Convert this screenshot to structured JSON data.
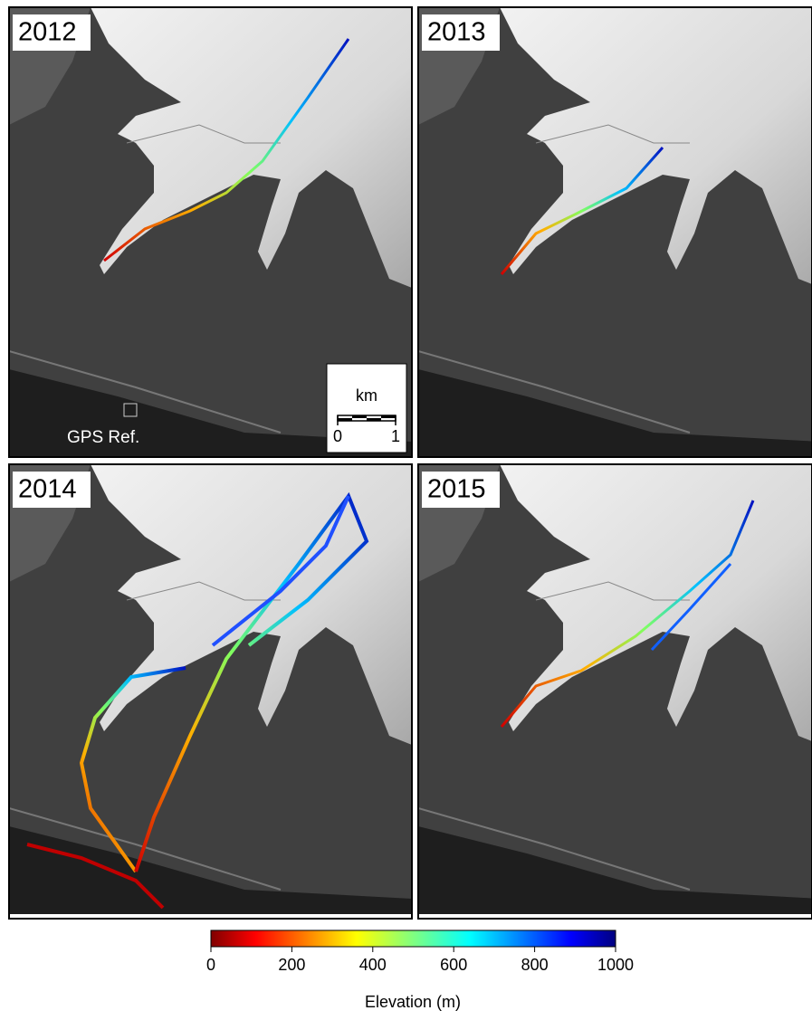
{
  "panels": [
    "2012",
    "2013",
    "2014",
    "2015"
  ],
  "gps_label": "GPS Ref.",
  "scale_bar": {
    "unit": "km",
    "ticks": [
      0,
      1
    ]
  },
  "colorbar": {
    "label": "Elevation (m)",
    "lim": [
      0,
      1000
    ],
    "ticks": [
      0,
      200,
      400,
      600,
      800,
      1000
    ]
  }
}
